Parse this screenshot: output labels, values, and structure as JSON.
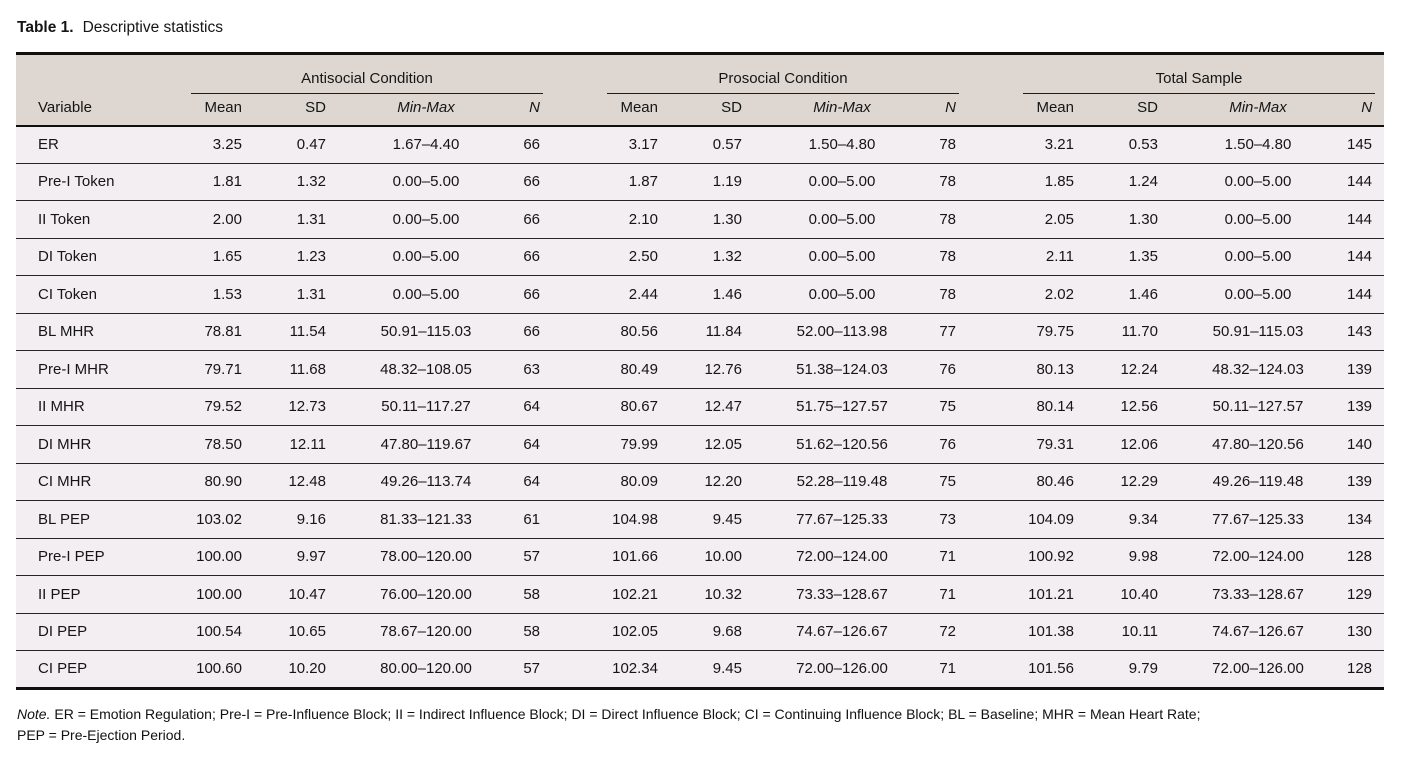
{
  "title": {
    "label": "Table 1.",
    "caption": "Descriptive statistics"
  },
  "table": {
    "header_bg": "#ded7d1",
    "row_bg": "#f3eef1",
    "groups": [
      {
        "label": "Antisocial Condition"
      },
      {
        "label": "Prosocial Condition"
      },
      {
        "label": "Total Sample"
      }
    ],
    "variable_header": "Variable",
    "sub_headers": {
      "mean": "Mean",
      "sd": "SD",
      "minmax": "Min-Max",
      "n": "N"
    },
    "rows": [
      {
        "variable": "ER",
        "cells": [
          "3.25",
          "0.47",
          "1.67–4.40",
          "66",
          "3.17",
          "0.57",
          "1.50–4.80",
          "78",
          "3.21",
          "0.53",
          "1.50–4.80",
          "145"
        ]
      },
      {
        "variable": "Pre-I Token",
        "cells": [
          "1.81",
          "1.32",
          "0.00–5.00",
          "66",
          "1.87",
          "1.19",
          "0.00–5.00",
          "78",
          "1.85",
          "1.24",
          "0.00–5.00",
          "144"
        ]
      },
      {
        "variable": "II Token",
        "cells": [
          "2.00",
          "1.31",
          "0.00–5.00",
          "66",
          "2.10",
          "1.30",
          "0.00–5.00",
          "78",
          "2.05",
          "1.30",
          "0.00–5.00",
          "144"
        ]
      },
      {
        "variable": "DI Token",
        "cells": [
          "1.65",
          "1.23",
          "0.00–5.00",
          "66",
          "2.50",
          "1.32",
          "0.00–5.00",
          "78",
          "2.11",
          "1.35",
          "0.00–5.00",
          "144"
        ]
      },
      {
        "variable": "CI Token",
        "cells": [
          "1.53",
          "1.31",
          "0.00–5.00",
          "66",
          "2.44",
          "1.46",
          "0.00–5.00",
          "78",
          "2.02",
          "1.46",
          "0.00–5.00",
          "144"
        ]
      },
      {
        "variable": "BL MHR",
        "cells": [
          "78.81",
          "11.54",
          "50.91–115.03",
          "66",
          "80.56",
          "11.84",
          "52.00–113.98",
          "77",
          "79.75",
          "11.70",
          "50.91–115.03",
          "143"
        ]
      },
      {
        "variable": "Pre-I MHR",
        "cells": [
          "79.71",
          "11.68",
          "48.32–108.05",
          "63",
          "80.49",
          "12.76",
          "51.38–124.03",
          "76",
          "80.13",
          "12.24",
          "48.32–124.03",
          "139"
        ]
      },
      {
        "variable": "II MHR",
        "cells": [
          "79.52",
          "12.73",
          "50.11–117.27",
          "64",
          "80.67",
          "12.47",
          "51.75–127.57",
          "75",
          "80.14",
          "12.56",
          "50.11–127.57",
          "139"
        ]
      },
      {
        "variable": "DI MHR",
        "cells": [
          "78.50",
          "12.11",
          "47.80–119.67",
          "64",
          "79.99",
          "12.05",
          "51.62–120.56",
          "76",
          "79.31",
          "12.06",
          "47.80–120.56",
          "140"
        ]
      },
      {
        "variable": "CI MHR",
        "cells": [
          "80.90",
          "12.48",
          "49.26–113.74",
          "64",
          "80.09",
          "12.20",
          "52.28–119.48",
          "75",
          "80.46",
          "12.29",
          "49.26–119.48",
          "139"
        ]
      },
      {
        "variable": "BL PEP",
        "cells": [
          "103.02",
          "9.16",
          "81.33–121.33",
          "61",
          "104.98",
          "9.45",
          "77.67–125.33",
          "73",
          "104.09",
          "9.34",
          "77.67–125.33",
          "134"
        ]
      },
      {
        "variable": "Pre-I PEP",
        "cells": [
          "100.00",
          "9.97",
          "78.00–120.00",
          "57",
          "101.66",
          "10.00",
          "72.00–124.00",
          "71",
          "100.92",
          "9.98",
          "72.00–124.00",
          "128"
        ]
      },
      {
        "variable": "II PEP",
        "cells": [
          "100.00",
          "10.47",
          "76.00–120.00",
          "58",
          "102.21",
          "10.32",
          "73.33–128.67",
          "71",
          "101.21",
          "10.40",
          "73.33–128.67",
          "129"
        ]
      },
      {
        "variable": "DI PEP",
        "cells": [
          "100.54",
          "10.65",
          "78.67–120.00",
          "58",
          "102.05",
          "9.68",
          "74.67–126.67",
          "72",
          "101.38",
          "10.11",
          "74.67–126.67",
          "130"
        ]
      },
      {
        "variable": "CI PEP",
        "cells": [
          "100.60",
          "10.20",
          "80.00–120.00",
          "57",
          "102.34",
          "9.45",
          "72.00–126.00",
          "71",
          "101.56",
          "9.79",
          "72.00–126.00",
          "128"
        ]
      }
    ]
  },
  "note": {
    "label": "Note.",
    "line1": "ER = Emotion Regulation; Pre-I = Pre-Influence Block; II = Indirect Influence Block; DI = Direct Influence Block; CI = Continuing Influence Block; BL = Baseline; MHR = Mean Heart Rate;",
    "line2": "PEP = Pre-Ejection Period."
  }
}
